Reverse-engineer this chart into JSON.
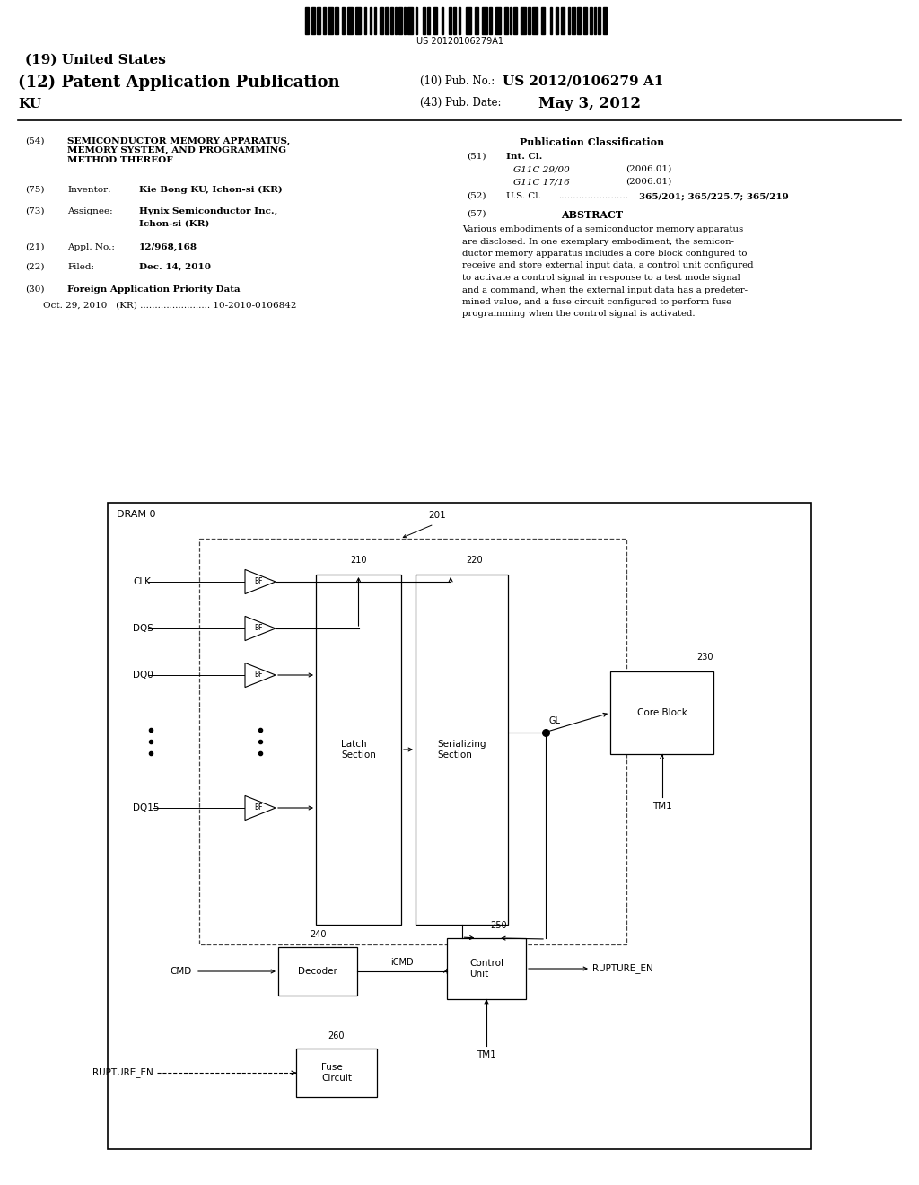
{
  "bg_color": "#ffffff",
  "barcode_text": "US 20120106279A1",
  "header": {
    "title19": "(19) United States",
    "title12": "(12) Patent Application Publication",
    "name": "KU",
    "pub_no_label": "(10) Pub. No.:",
    "pub_no": "US 2012/0106279 A1",
    "pub_date_label": "(43) Pub. Date:",
    "pub_date": "May 3, 2012"
  },
  "left_col": {
    "f54_label": "(54)",
    "f54_val": "SEMICONDUCTOR MEMORY APPARATUS,\nMEMORY SYSTEM, AND PROGRAMMING\nMETHOD THEREOF",
    "f75_label": "(75)",
    "f75_title": "Inventor:",
    "f75_val": "Kie Bong KU, Ichon-si (KR)",
    "f73_label": "(73)",
    "f73_title": "Assignee:",
    "f73_val_1": "Hynix Semiconductor Inc.,",
    "f73_val_2": "Ichon-si (KR)",
    "f21_label": "(21)",
    "f21_title": "Appl. No.:",
    "f21_val": "12/968,168",
    "f22_label": "(22)",
    "f22_title": "Filed:",
    "f22_val": "Dec. 14, 2010",
    "f30_label": "(30)",
    "f30_title": "Foreign Application Priority Data",
    "f30_val": "Oct. 29, 2010   (KR) ........................ 10-2010-0106842"
  },
  "right_col": {
    "pub_class": "Publication Classification",
    "f51_label": "(51)",
    "f51_title": "Int. Cl.",
    "f51_a": "G11C 29/00",
    "f51_a_date": "(2006.01)",
    "f51_b": "G11C 17/16",
    "f51_b_date": "(2006.01)",
    "f52_label": "(52)",
    "f52_title": "U.S. Cl.",
    "f52_dots": "........................",
    "f52_val": "365/201; 365/225.7; 365/219",
    "f57_label": "(57)",
    "f57_title": "ABSTRACT",
    "abstract": [
      "Various embodiments of a semiconductor memory apparatus",
      "are disclosed. In one exemplary embodiment, the semicon-",
      "ductor memory apparatus includes a core block configured to",
      "receive and store external input data, a control unit configured",
      "to activate a control signal in response to a test mode signal",
      "and a command, when the external input data has a predeter-",
      "mined value, and a fuse circuit configured to perform fuse",
      "programming when the control signal is activated."
    ]
  },
  "diagram": {
    "dram_label": "DRAM 0",
    "ref201": "201",
    "ref210": "210",
    "ref220": "220",
    "ref230": "230",
    "ref240": "240",
    "ref250": "250",
    "ref260": "260",
    "latch_label": "Latch\nSection",
    "ser_label": "Serializing\nSection",
    "core_label": "Core Block",
    "dec_label": "Decoder",
    "cu_label": "Control\nUnit",
    "fuse_label": "Fuse\nCircuit",
    "sigs": [
      "CLK",
      "DQS",
      "DQ0",
      "DQ15"
    ],
    "GL": "GL",
    "CMD": "CMD",
    "iCMD": "iCMD",
    "TM1": "TM1",
    "RUPTURE_EN": "RUPTURE_EN"
  }
}
